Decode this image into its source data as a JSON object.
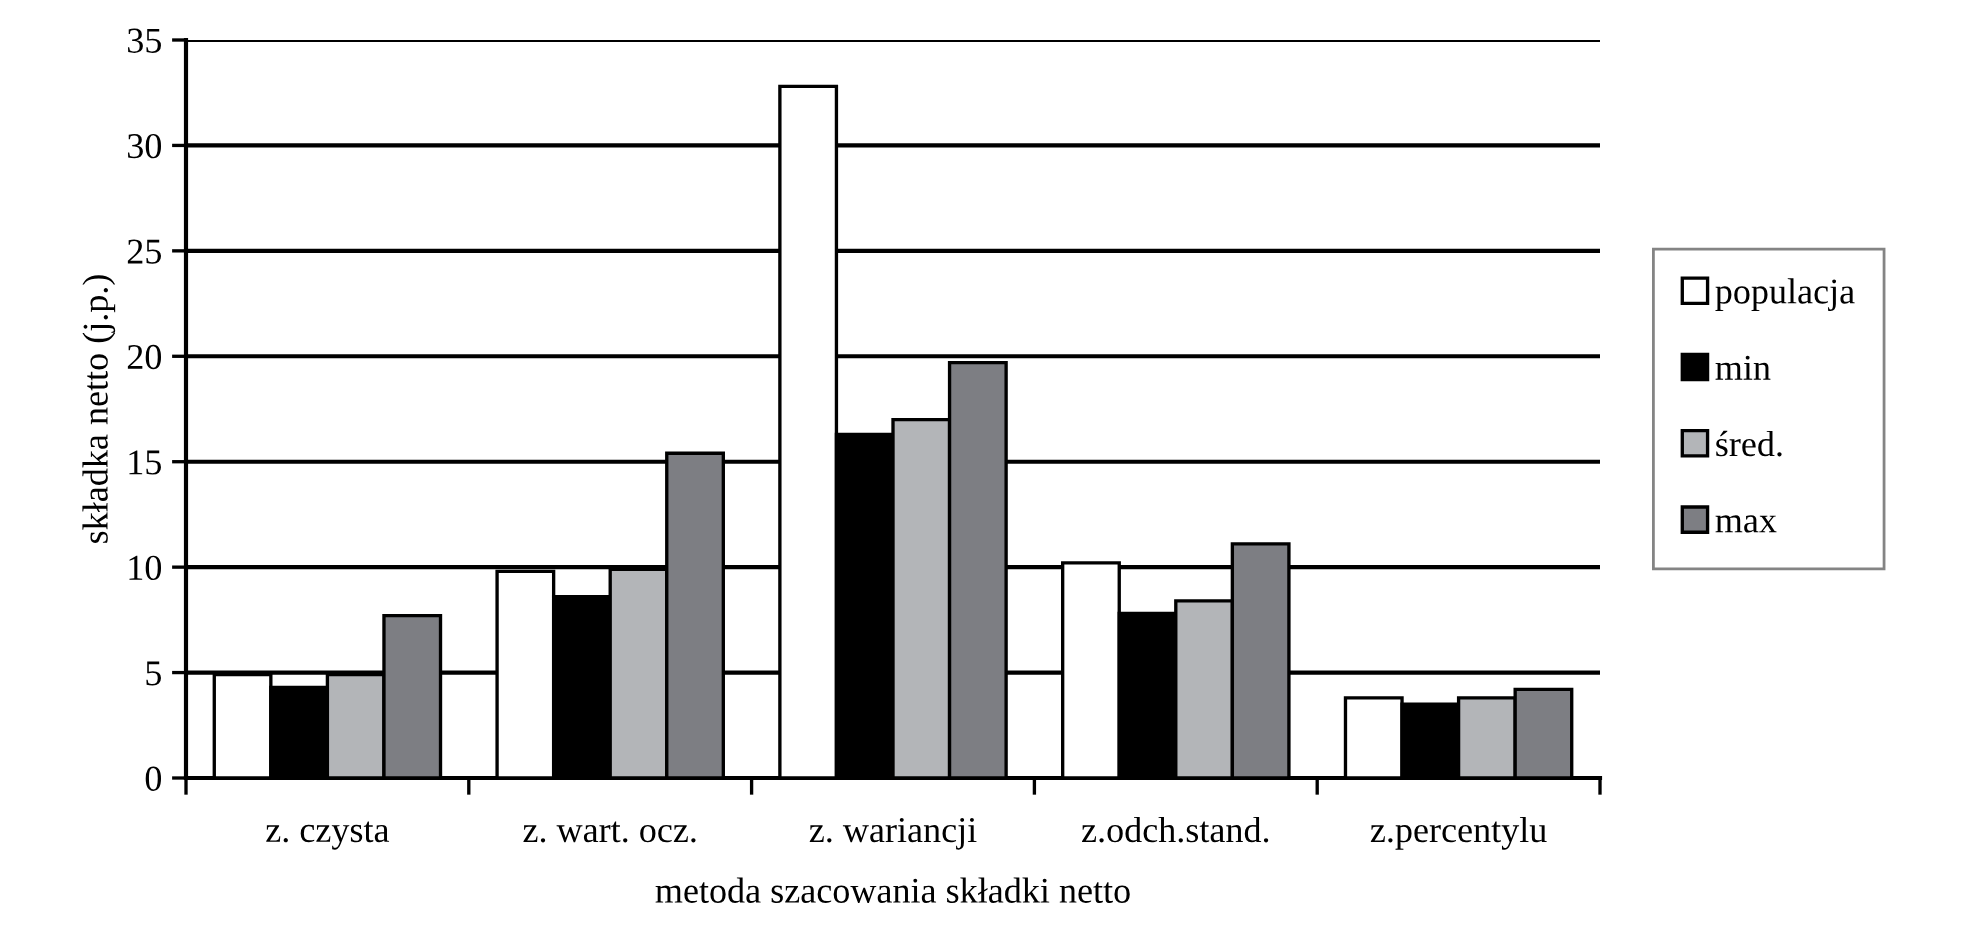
{
  "chart_data": {
    "type": "bar",
    "xlabel": "metoda szacowania składki netto",
    "ylabel": "składka netto (j.p.)",
    "categories": [
      "z. czysta",
      "z. wart. ocz.",
      "z. wariancji",
      "z.odch.stand.",
      "z.percentylu"
    ],
    "series": [
      {
        "name": "populacja",
        "color": "#ffffff",
        "values": [
          4.9,
          9.8,
          32.8,
          10.2,
          3.8
        ]
      },
      {
        "name": "min",
        "color": "#000000",
        "values": [
          4.3,
          8.6,
          16.3,
          7.8,
          3.5
        ]
      },
      {
        "name": "śred.",
        "color": "#b3b5b8",
        "values": [
          4.9,
          9.9,
          17.0,
          8.4,
          3.8
        ]
      },
      {
        "name": "max",
        "color": "#7d7e83",
        "values": [
          7.7,
          15.4,
          19.7,
          11.1,
          4.2
        ]
      }
    ],
    "ylim": [
      0,
      35
    ],
    "yticks": [
      0,
      5,
      10,
      15,
      20,
      25,
      30,
      35
    ],
    "grid": "y",
    "legend": "right"
  }
}
